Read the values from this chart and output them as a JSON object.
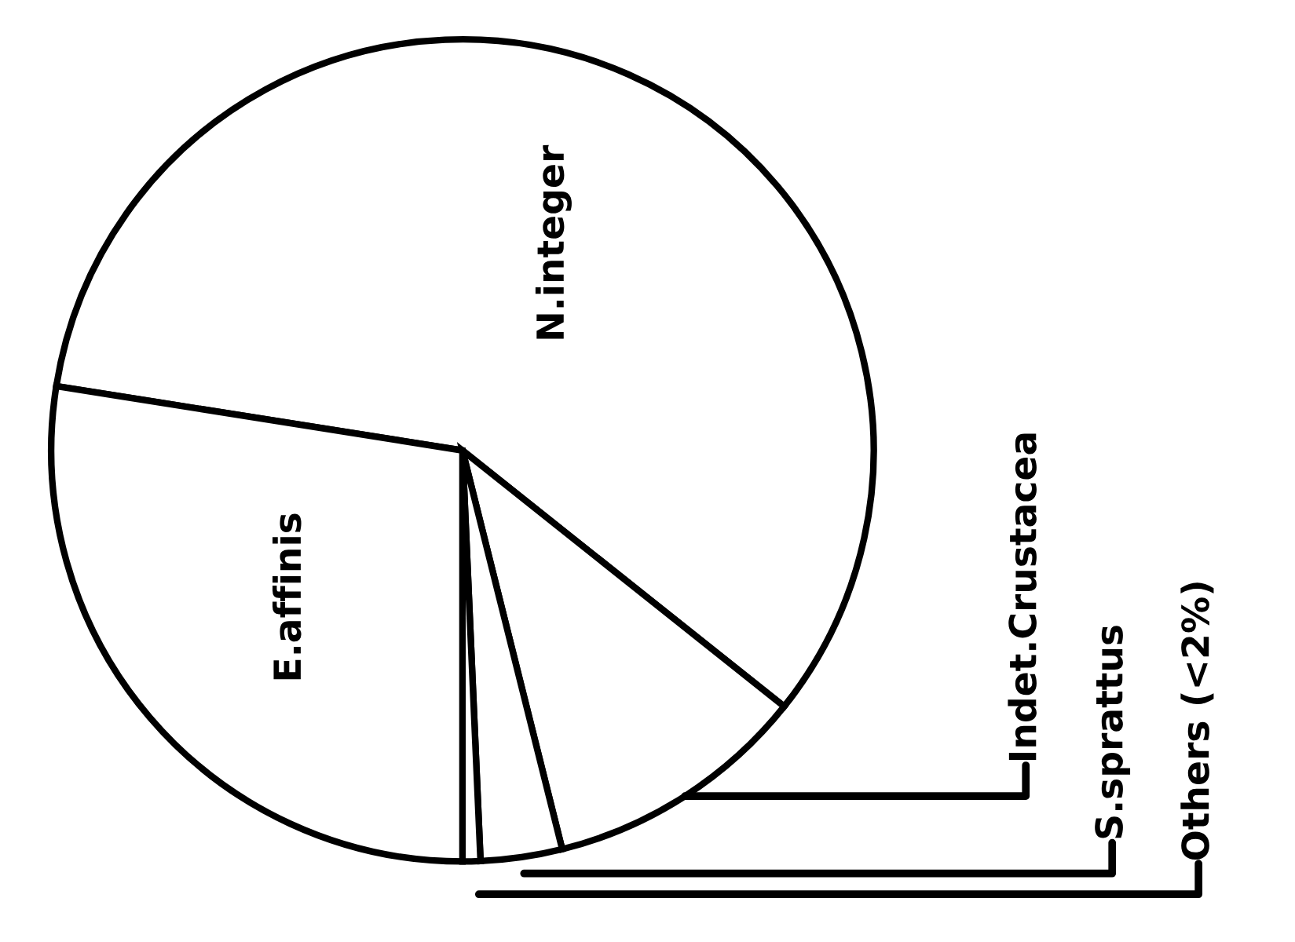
{
  "chart_data": {
    "type": "pie",
    "categories": [
      "N.integer",
      "Indet.Crustacea",
      "S.sprattus",
      "Others (<2%)",
      "E.affinis"
    ],
    "values": [
      58.2,
      10.4,
      3.2,
      0.7,
      27.5
    ],
    "colors": [
      "#ffffff",
      "#ffffff",
      "#ffffff",
      "#ffffff",
      "#ffffff"
    ],
    "legend": false
  }
}
